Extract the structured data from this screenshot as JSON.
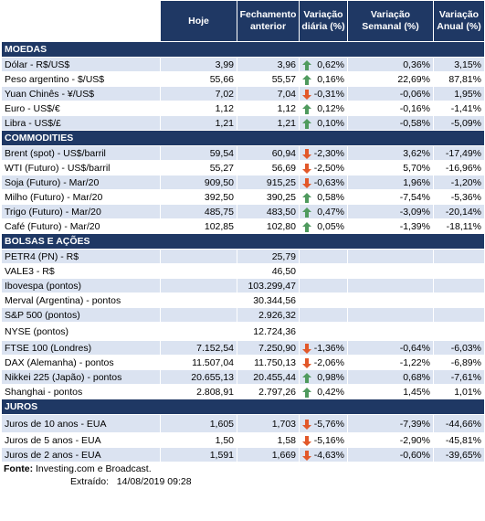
{
  "header": {
    "col_hoje": "Hoje",
    "col_fechamento": "Fechamento anterior",
    "col_var_diaria": "Variação diária (%)",
    "col_var_semanal": "Variação Semanal (%)",
    "col_var_anual": "Variação Anual (%)"
  },
  "sections": [
    {
      "title": "MOEDAS",
      "rows": [
        {
          "name": "Dólar - R$/US$",
          "hoje": "3,99",
          "fech": "3,96",
          "dir": "up",
          "diaria": "0,62%",
          "semanal": "0,36%",
          "anual": "3,15%"
        },
        {
          "name": "Peso argentino - $/US$",
          "hoje": "55,66",
          "fech": "55,57",
          "dir": "up",
          "diaria": "0,16%",
          "semanal": "22,69%",
          "anual": "87,81%"
        },
        {
          "name": "Yuan Chinês - ¥/US$",
          "hoje": "7,02",
          "fech": "7,04",
          "dir": "down",
          "diaria": "-0,31%",
          "semanal": "-0,06%",
          "anual": "1,95%"
        },
        {
          "name": "Euro - US$/€",
          "hoje": "1,12",
          "fech": "1,12",
          "dir": "up",
          "diaria": "0,12%",
          "semanal": "-0,16%",
          "anual": "-1,41%"
        },
        {
          "name": "Libra - US$/£",
          "hoje": "1,21",
          "fech": "1,21",
          "dir": "up",
          "diaria": "0,10%",
          "semanal": "-0,58%",
          "anual": "-5,09%"
        }
      ]
    },
    {
      "title": "COMMODITIES",
      "rows": [
        {
          "name": "Brent (spot) - US$/barril",
          "hoje": "59,54",
          "fech": "60,94",
          "dir": "down",
          "diaria": "-2,30%",
          "semanal": "3,62%",
          "anual": "-17,49%"
        },
        {
          "name": "WTI (Futuro) - US$/barril",
          "hoje": "55,27",
          "fech": "56,69",
          "dir": "down",
          "diaria": "-2,50%",
          "semanal": "5,70%",
          "anual": "-16,96%"
        },
        {
          "name": "Soja (Futuro) - Mar/20",
          "hoje": "909,50",
          "fech": "915,25",
          "dir": "down",
          "diaria": "-0,63%",
          "semanal": "1,96%",
          "anual": "-1,20%"
        },
        {
          "name": "Milho (Futuro) - Mar/20",
          "hoje": "392,50",
          "fech": "390,25",
          "dir": "up",
          "diaria": "0,58%",
          "semanal": "-7,54%",
          "anual": "-5,36%"
        },
        {
          "name": "Trigo (Futuro) - Mar/20",
          "hoje": "485,75",
          "fech": "483,50",
          "dir": "up",
          "diaria": "0,47%",
          "semanal": "-3,09%",
          "anual": "-20,14%"
        },
        {
          "name": "Café (Futuro) - Mar/20",
          "hoje": "102,85",
          "fech": "102,80",
          "dir": "up",
          "diaria": "0,05%",
          "semanal": "-1,39%",
          "anual": "-18,11%"
        }
      ]
    },
    {
      "title": "BOLSAS E AÇÕES",
      "rows": [
        {
          "name": "PETR4 (PN) - R$",
          "hoje": "",
          "fech": "25,79",
          "dir": "",
          "diaria": "",
          "semanal": "",
          "anual": ""
        },
        {
          "name": "VALE3 - R$",
          "hoje": "",
          "fech": "46,50",
          "dir": "",
          "diaria": "",
          "semanal": "",
          "anual": ""
        },
        {
          "name": "Ibovespa (pontos)",
          "hoje": "",
          "fech": "103.299,47",
          "dir": "",
          "diaria": "",
          "semanal": "",
          "anual": ""
        },
        {
          "name": "Merval (Argentina) - pontos",
          "hoje": "",
          "fech": "30.344,56",
          "dir": "",
          "diaria": "",
          "semanal": "",
          "anual": ""
        },
        {
          "name": "S&P 500 (pontos)",
          "hoje": "",
          "fech": "2.926,32",
          "dir": "",
          "diaria": "",
          "semanal": "",
          "anual": ""
        },
        {
          "name": "NYSE (pontos)",
          "hoje": "",
          "fech": "12.724,36",
          "dir": "",
          "diaria": "",
          "semanal": "",
          "anual": "",
          "gap": true
        },
        {
          "name": "FTSE 100 (Londres)",
          "hoje": "7.152,54",
          "fech": "7.250,90",
          "dir": "down",
          "diaria": "-1,36%",
          "semanal": "-0,64%",
          "anual": "-6,03%"
        },
        {
          "name": "DAX (Alemanha) - pontos",
          "hoje": "11.507,04",
          "fech": "11.750,13",
          "dir": "down",
          "diaria": "-2,06%",
          "semanal": "-1,22%",
          "anual": "-6,89%"
        },
        {
          "name": "Nikkei 225 (Japão) - pontos",
          "hoje": "20.655,13",
          "fech": "20.455,44",
          "dir": "up",
          "diaria": "0,98%",
          "semanal": "0,68%",
          "anual": "-7,61%"
        },
        {
          "name": "Shanghai - pontos",
          "hoje": "2.808,91",
          "fech": "2.797,26",
          "dir": "up",
          "diaria": "0,42%",
          "semanal": "1,45%",
          "anual": "1,01%"
        }
      ]
    },
    {
      "title": "JUROS",
      "rows": [
        {
          "name": "Juros de 10 anos - EUA",
          "hoje": "1,605",
          "fech": "1,703",
          "dir": "down",
          "diaria": "-5,76%",
          "semanal": "-7,39%",
          "anual": "-44,66%",
          "gap": true
        },
        {
          "name": "Juros de 5 anos - EUA",
          "hoje": "1,50",
          "fech": "1,58",
          "dir": "down",
          "diaria": "-5,16%",
          "semanal": "-2,90%",
          "anual": "-45,81%"
        },
        {
          "name": "Juros de 2 anos - EUA",
          "hoje": "1,591",
          "fech": "1,669",
          "dir": "down",
          "diaria": "-4,63%",
          "semanal": "-0,60%",
          "anual": "-39,65%"
        }
      ]
    }
  ],
  "footer": {
    "fonte_label": "Fonte:",
    "fonte_text": " Investing.com e Broadcast.",
    "extraido_label": "Extraído:",
    "extraido_value": "14/08/2019 09:28"
  },
  "colors": {
    "header_bg": "#1f3864",
    "band": "#dbe3f1",
    "arrow_up": "#4f9a5e",
    "arrow_down": "#e2582a"
  }
}
